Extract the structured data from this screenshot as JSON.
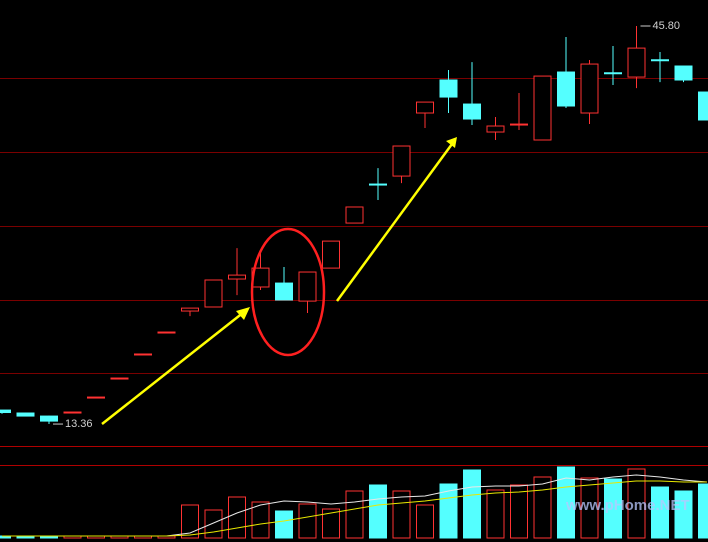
{
  "chart_data": {
    "type": "candlestick",
    "up_color": "#ff3232",
    "down_color": "#54ffff",
    "ylim": [
      12.06,
      47.92
    ],
    "volume_ylim": [
      0,
      73
    ],
    "open": [
      14.5,
      14.26,
      14.01,
      14.3,
      15.5,
      17.05,
      19.0,
      20.8,
      22.57,
      22.9,
      25.18,
      24.53,
      24.85,
      23.38,
      26.07,
      29.74,
      32.92,
      33.57,
      38.71,
      41.4,
      39.44,
      37.16,
      37.78,
      36.51,
      42.05,
      38.71,
      41.99,
      41.64,
      43.05,
      42.54,
      40.42
    ],
    "high": [
      14.5,
      14.3,
      14.05,
      14.34,
      15.56,
      17.11,
      19.07,
      20.86,
      22.81,
      25.1,
      27.7,
      27.54,
      26.16,
      25.75,
      28.27,
      31.05,
      34.22,
      36.02,
      39.6,
      42.21,
      42.86,
      38.38,
      40.34,
      41.72,
      44.9,
      43.03,
      44.17,
      45.8,
      43.68,
      42.54,
      40.42
    ],
    "low": [
      14.2,
      14.0,
      13.36,
      14.3,
      15.5,
      17.05,
      19.0,
      20.8,
      22.16,
      22.9,
      23.87,
      24.28,
      23.47,
      22.41,
      26.07,
      29.74,
      31.62,
      33.0,
      37.49,
      38.71,
      37.73,
      36.51,
      37.32,
      36.51,
      39.12,
      37.81,
      40.99,
      40.74,
      41.23,
      41.23,
      38.14
    ],
    "close": [
      14.3,
      14.01,
      13.6,
      14.34,
      15.56,
      17.11,
      19.07,
      20.86,
      22.81,
      25.1,
      25.5,
      26.07,
      23.47,
      25.75,
      28.27,
      31.05,
      32.9,
      36.02,
      39.6,
      40.01,
      38.22,
      37.65,
      37.81,
      41.72,
      39.28,
      42.7,
      41.97,
      44.0,
      43.03,
      41.4,
      38.14
    ],
    "volume": [
      2,
      2,
      2,
      2,
      2,
      2,
      2,
      2,
      33,
      28,
      41,
      36,
      27,
      34,
      29,
      47,
      53,
      47,
      33,
      54,
      68,
      48,
      53,
      61,
      71,
      60,
      59,
      69,
      51,
      47,
      54
    ],
    "volume_ma": [
      {
        "color": "#e8e8e8",
        "values": [
          2,
          2,
          2,
          2,
          2,
          2,
          2,
          2,
          5,
          15,
          25,
          33,
          37,
          36,
          34,
          36,
          39,
          41,
          42,
          47,
          51,
          52,
          52,
          54,
          60,
          58,
          61,
          63,
          61,
          58,
          56
        ]
      },
      {
        "color": "#e8e800",
        "values": [
          2,
          2,
          2,
          2,
          2,
          2,
          2,
          2,
          3,
          6,
          10,
          14,
          17,
          21,
          25,
          29,
          33,
          35,
          37,
          40,
          43,
          45,
          46,
          48,
          51,
          53,
          55,
          57,
          57,
          56,
          56
        ]
      }
    ],
    "annotations": [
      {
        "text": "13.36",
        "index": 2,
        "value": 13.36
      },
      {
        "text": "45.80",
        "index": 27,
        "value": 45.8
      }
    ],
    "watermark": "www.pHome.NET"
  }
}
